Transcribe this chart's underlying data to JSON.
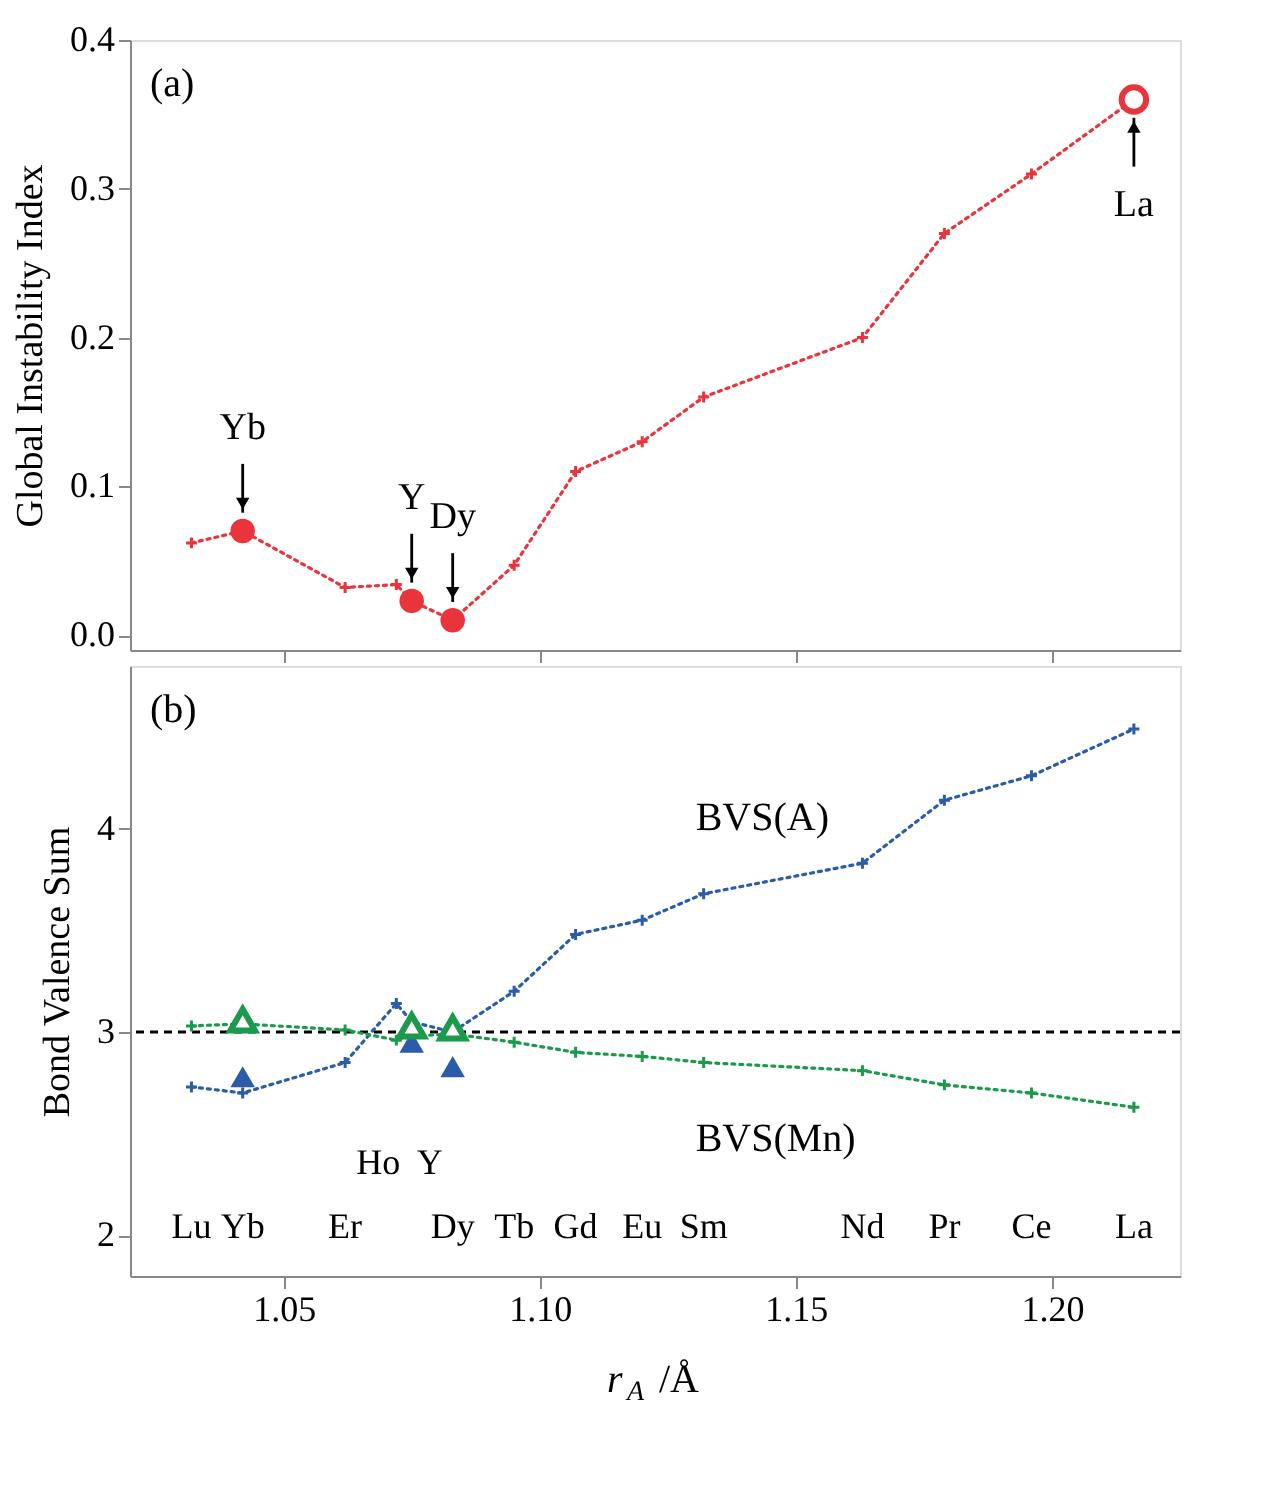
{
  "chart_data": [
    {
      "type": "line",
      "ylabel": "Global Instability Index",
      "xlim": [
        1.02,
        1.225
      ],
      "xticks": [
        {
          "value": 1.05,
          "label": null
        },
        {
          "value": 1.1,
          "label": null
        },
        {
          "value": 1.15,
          "label": null
        },
        {
          "value": 1.2,
          "label": null
        }
      ],
      "ylim": [
        -0.01,
        0.4
      ],
      "yticks": [
        {
          "value": 0,
          "label": "0.0"
        },
        0.1,
        0.2,
        0.3,
        0.4
      ],
      "tick_labels": "y",
      "line_style": "dotted",
      "marker": "cross",
      "x": [
        1.032,
        1.042,
        1.062,
        1.072,
        1.075,
        1.083,
        1.095,
        1.107,
        1.12,
        1.132,
        1.163,
        1.179,
        1.196,
        1.216
      ],
      "series": [
        {
          "color": "#e8343a",
          "values": [
            0.062,
            0.07,
            0.032,
            0.034,
            0.023,
            0.01,
            0.047,
            0.11,
            0.13,
            0.16,
            0.2,
            0.27,
            0.31,
            0.36
          ]
        },
        {
          "type": "scatter",
          "marker": "circle",
          "color": "#e8343a",
          "x": [
            1.042,
            1.075,
            1.083
          ],
          "values": [
            0.07,
            0.023,
            0.01
          ]
        },
        {
          "type": "scatter",
          "marker": "circle",
          "color": "#e8343a",
          "x": [
            1.216
          ],
          "values": [
            0.36
          ]
        }
      ],
      "annotations": [
        "(a)",
        {
          "text": "Yb",
          "x": 1.042,
          "y": 0.07
        },
        {
          "text": "Y",
          "x": 1.075,
          "y": 0.023
        },
        {
          "text": "Dy",
          "x": 1.083,
          "y": 0.01
        },
        {
          "text": "La",
          "x": 1.216,
          "y": 0.36
        }
      ]
    },
    {
      "type": "line",
      "ylabel": "Bond Valence Sum",
      "xlabel": "r$_{A}$ /Å",
      "xlim": [
        1.02,
        1.225
      ],
      "xticks": [
        {
          "value": 1.05,
          "label": "1.05"
        },
        {
          "value": 1.1,
          "label": "1.10"
        },
        {
          "value": 1.15,
          "label": "1.15"
        },
        {
          "value": 1.2,
          "label": "1.20"
        }
      ],
      "ylim": [
        1.8,
        4.8
      ],
      "yticks": [
        2,
        3,
        4
      ],
      "line_style": "dotted",
      "marker": "cross",
      "x": [
        1.032,
        1.042,
        1.062,
        1.072,
        1.075,
        1.083,
        1.095,
        1.107,
        1.12,
        1.132,
        1.163,
        1.179,
        1.196,
        1.216
      ],
      "series": [
        {
          "name": "BVS(A)",
          "color": "#2a5caa",
          "values": [
            2.73,
            2.7,
            2.85,
            3.14,
            3.05,
            3.0,
            3.2,
            3.48,
            3.55,
            3.68,
            3.83,
            4.14,
            4.26,
            4.49
          ]
        },
        {
          "name": "BVS(Mn)",
          "color": "#1a9a4a",
          "values": [
            3.03,
            3.04,
            3.01,
            2.96,
            2.98,
            2.99,
            2.95,
            2.9,
            2.88,
            2.85,
            2.81,
            2.74,
            2.7,
            2.63
          ]
        },
        {
          "type": "scatter",
          "marker": "triangle",
          "color": "#2a5caa",
          "x": [
            1.042,
            1.075,
            1.083
          ],
          "values": [
            2.78,
            2.95,
            2.83
          ]
        },
        {
          "type": "scatter",
          "marker": "triangle",
          "color": "#1a9a4a",
          "x": [
            1.042,
            1.075,
            1.083
          ],
          "values": [
            3.06,
            3.03,
            3.02
          ]
        }
      ],
      "ref_lines": [
        {
          "axis": "y",
          "value": 3,
          "color": "#000000",
          "line_style": "dashed"
        }
      ],
      "annotations": [
        "(b)",
        "Lu",
        "Yb",
        "Er",
        "Ho",
        "Y",
        "Dy",
        "Tb",
        "Gd",
        "Eu",
        "Sm",
        "Nd",
        "Pr",
        "Ce",
        "La"
      ]
    }
  ]
}
